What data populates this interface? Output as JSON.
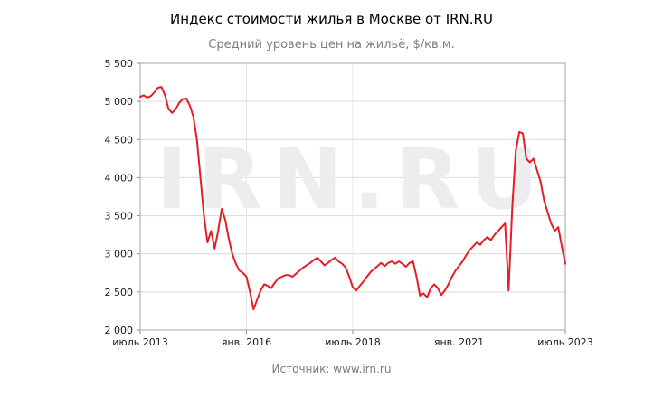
{
  "chart_data": {
    "type": "line",
    "title": "Индекс стоимости жилья в Москве от IRN.RU",
    "subtitle": "Средний уровень цен на жильё, $/кв.м.",
    "source": "Источник: www.irn.ru",
    "watermark": "IRN.RU",
    "series_name": "Средний уровень цен на жильё, $/кв.м.",
    "x_start": "июль 2013",
    "x_end": "июль 2023",
    "x_interval": "monthly",
    "ylim": [
      2000,
      5500
    ],
    "grid": true,
    "legend": "none",
    "y_ticks": [
      2000,
      2500,
      3000,
      3500,
      4000,
      4500,
      5000,
      5500
    ],
    "y_tick_labels": [
      "2 000",
      "2 500",
      "3 000",
      "3 500",
      "4 000",
      "4 500",
      "5 000",
      "5 500"
    ],
    "x_ticks": [
      {
        "label": "июль 2013",
        "month_index": 0
      },
      {
        "label": "янв. 2016",
        "month_index": 30
      },
      {
        "label": "июль 2018",
        "month_index": 60
      },
      {
        "label": "янв. 2021",
        "month_index": 90
      },
      {
        "label": "июль 2023",
        "month_index": 120
      }
    ],
    "values": [
      5060,
      5080,
      5050,
      5070,
      5120,
      5180,
      5190,
      5080,
      4900,
      4850,
      4900,
      4980,
      5030,
      5040,
      4950,
      4800,
      4500,
      4000,
      3500,
      3150,
      3300,
      3070,
      3300,
      3590,
      3450,
      3200,
      3000,
      2870,
      2780,
      2750,
      2700,
      2500,
      2270,
      2400,
      2520,
      2600,
      2580,
      2550,
      2620,
      2680,
      2700,
      2720,
      2720,
      2700,
      2740,
      2780,
      2820,
      2850,
      2880,
      2920,
      2950,
      2900,
      2850,
      2880,
      2920,
      2950,
      2900,
      2870,
      2820,
      2700,
      2560,
      2520,
      2580,
      2640,
      2700,
      2760,
      2800,
      2840,
      2880,
      2840,
      2880,
      2900,
      2870,
      2900,
      2870,
      2830,
      2880,
      2900,
      2700,
      2450,
      2480,
      2430,
      2550,
      2600,
      2550,
      2460,
      2520,
      2600,
      2700,
      2780,
      2840,
      2900,
      2980,
      3050,
      3100,
      3150,
      3120,
      3180,
      3220,
      3180,
      3250,
      3300,
      3350,
      3400,
      2520,
      3600,
      4350,
      4600,
      4580,
      4250,
      4200,
      4250,
      4100,
      3950,
      3700,
      3550,
      3400,
      3300,
      3350,
      3100,
      2870
    ],
    "colors": {
      "line": "#e31e24",
      "grid": "#d9d9d9",
      "grid_light": "#e7e7e7",
      "border": "#a6a6a6",
      "axis": "#8c8c8c",
      "text": "#1a1a1a",
      "watermark": "#ededed",
      "title": "#000000",
      "subtitle": "#7d7d7d"
    }
  }
}
